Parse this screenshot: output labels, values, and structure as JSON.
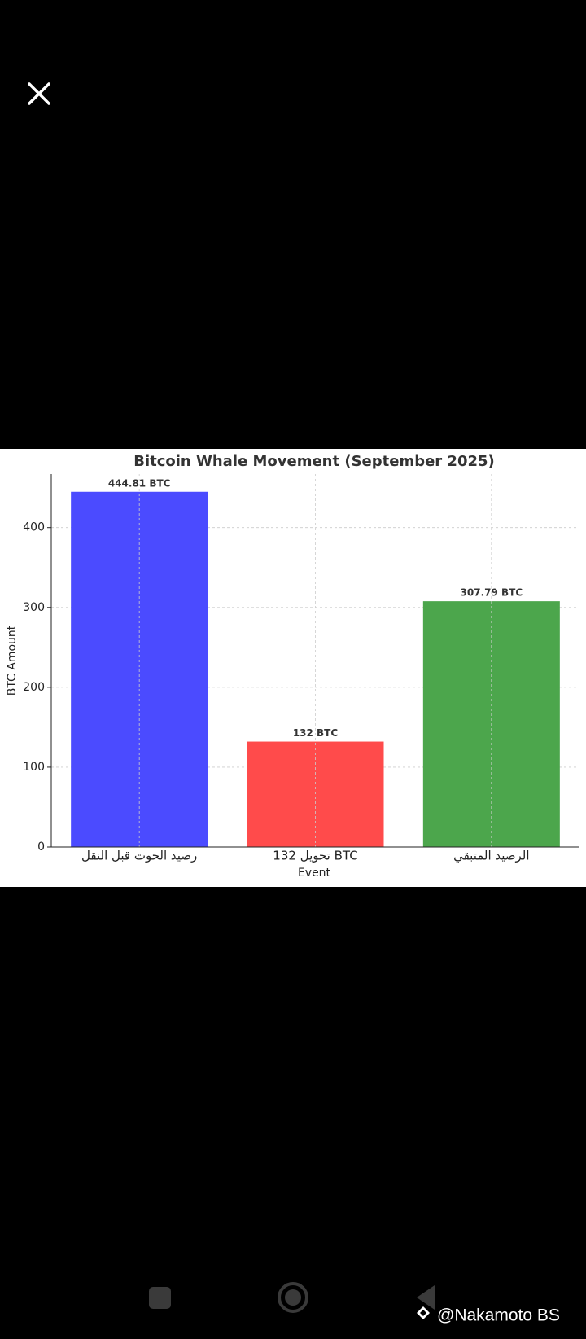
{
  "chart_data": {
    "type": "bar",
    "title": "Bitcoin Whale Movement (September 2025)",
    "x_label": "Event",
    "y_label": "BTC Amount",
    "categories": [
      "رصيد الحوت قبل النقل",
      "تحويل 132 BTC",
      "الرصيد المتبقي"
    ],
    "values": [
      444.81,
      132,
      307.79
    ],
    "value_labels": [
      "444.81 BTC",
      "132 BTC",
      "307.79 BTC"
    ],
    "colors": [
      "#4b4bff",
      "#ff4b4b",
      "#4ca64c"
    ],
    "ylim": [
      0,
      467
    ],
    "yticks": [
      0,
      100,
      200,
      300,
      400
    ],
    "grid": true
  },
  "watermark": "@Nakamoto BS"
}
